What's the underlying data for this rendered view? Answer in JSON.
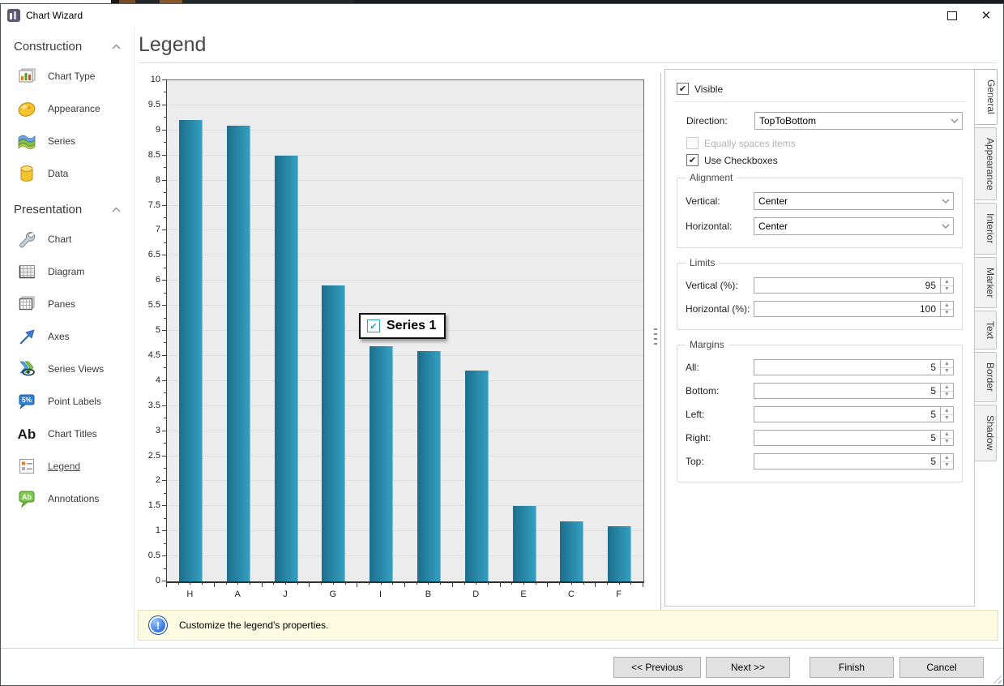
{
  "window": {
    "title": "Chart Wizard"
  },
  "sidebar": {
    "sections": [
      {
        "label": "Construction",
        "items": [
          {
            "label": "Chart Type",
            "icon": "chart-type-icon"
          },
          {
            "label": "Appearance",
            "icon": "appearance-icon"
          },
          {
            "label": "Series",
            "icon": "series-icon"
          },
          {
            "label": "Data",
            "icon": "data-icon"
          }
        ]
      },
      {
        "label": "Presentation",
        "items": [
          {
            "label": "Chart",
            "icon": "chart-icon"
          },
          {
            "label": "Diagram",
            "icon": "diagram-icon"
          },
          {
            "label": "Panes",
            "icon": "panes-icon"
          },
          {
            "label": "Axes",
            "icon": "axes-icon"
          },
          {
            "label": "Series Views",
            "icon": "series-views-icon"
          },
          {
            "label": "Point Labels",
            "icon": "point-labels-icon"
          },
          {
            "label": "Chart Titles",
            "icon": "chart-titles-icon"
          },
          {
            "label": "Legend",
            "icon": "legend-icon",
            "selected": true
          },
          {
            "label": "Annotations",
            "icon": "annotations-icon"
          }
        ]
      }
    ]
  },
  "page": {
    "title": "Legend"
  },
  "chart_data": {
    "type": "bar",
    "title": "",
    "categories": [
      "H",
      "A",
      "J",
      "G",
      "I",
      "B",
      "D",
      "E",
      "C",
      "F"
    ],
    "values": [
      9.2,
      9.1,
      8.5,
      5.9,
      4.7,
      4.6,
      4.2,
      1.5,
      1.2,
      1.1
    ],
    "series": [
      {
        "name": "Series 1",
        "values": [
          9.2,
          9.1,
          8.5,
          5.9,
          4.7,
          4.6,
          4.2,
          1.5,
          1.2,
          1.1
        ]
      }
    ],
    "xlabel": "",
    "ylabel": "",
    "ylim": [
      0,
      10
    ],
    "tick_step": 0.5,
    "minor_tick_step": 0.25,
    "grid": true,
    "legend": {
      "label": "Series 1",
      "checked": true,
      "position": "center"
    }
  },
  "panel": {
    "visible": {
      "label": "Visible",
      "checked": true
    },
    "direction": {
      "label": "Direction:",
      "value": "TopToBottom"
    },
    "equally_spaced": {
      "label": "Equally spaces items",
      "checked": false,
      "enabled": false
    },
    "use_checkboxes": {
      "label": "Use Checkboxes",
      "checked": true
    },
    "groups": [
      {
        "title": "Alignment",
        "rows": [
          {
            "label": "Vertical:",
            "value": "Center",
            "control": "combo"
          },
          {
            "label": "Horizontal:",
            "value": "Center",
            "control": "combo"
          }
        ]
      },
      {
        "title": "Limits",
        "rows": [
          {
            "label": "Vertical (%):",
            "value": "95",
            "control": "spin"
          },
          {
            "label": "Horizontal (%):",
            "value": "100",
            "control": "spin"
          }
        ]
      },
      {
        "title": "Margins",
        "rows": [
          {
            "label": "All:",
            "value": "5",
            "control": "spin"
          },
          {
            "label": "Bottom:",
            "value": "5",
            "control": "spin"
          },
          {
            "label": "Left:",
            "value": "5",
            "control": "spin"
          },
          {
            "label": "Right:",
            "value": "5",
            "control": "spin"
          },
          {
            "label": "Top:",
            "value": "5",
            "control": "spin"
          }
        ]
      }
    ],
    "tabs": [
      {
        "label": "General",
        "active": true
      },
      {
        "label": "Appearance"
      },
      {
        "label": "Interior"
      },
      {
        "label": "Marker"
      },
      {
        "label": "Text"
      },
      {
        "label": "Border"
      },
      {
        "label": "Shadow"
      }
    ]
  },
  "status": {
    "text": "Customize the legend's properties."
  },
  "footer": {
    "buttons": [
      {
        "label": "<< Previous",
        "name": "previous-button"
      },
      {
        "label": "Next >>",
        "name": "next-button"
      },
      {
        "label": "Finish",
        "name": "finish-button"
      },
      {
        "label": "Cancel",
        "name": "cancel-button"
      }
    ]
  },
  "colors": {
    "bar_gradient_start": "#1d6e8c",
    "bar_gradient_end": "#35a1c2",
    "accent_teal": "#2aa2c4",
    "plot_background": "#ececec",
    "status_background": "#fcfbe2"
  }
}
